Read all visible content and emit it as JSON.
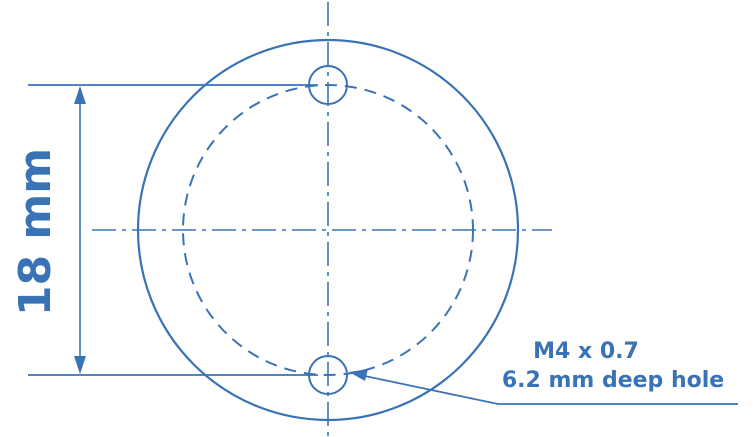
{
  "dimension": {
    "label": "18 mm"
  },
  "callout": {
    "thread": "M4 x 0.7",
    "depth": "6.2 mm deep hole"
  },
  "colors": {
    "line": "#3a73b5",
    "background": "#ffffff"
  }
}
